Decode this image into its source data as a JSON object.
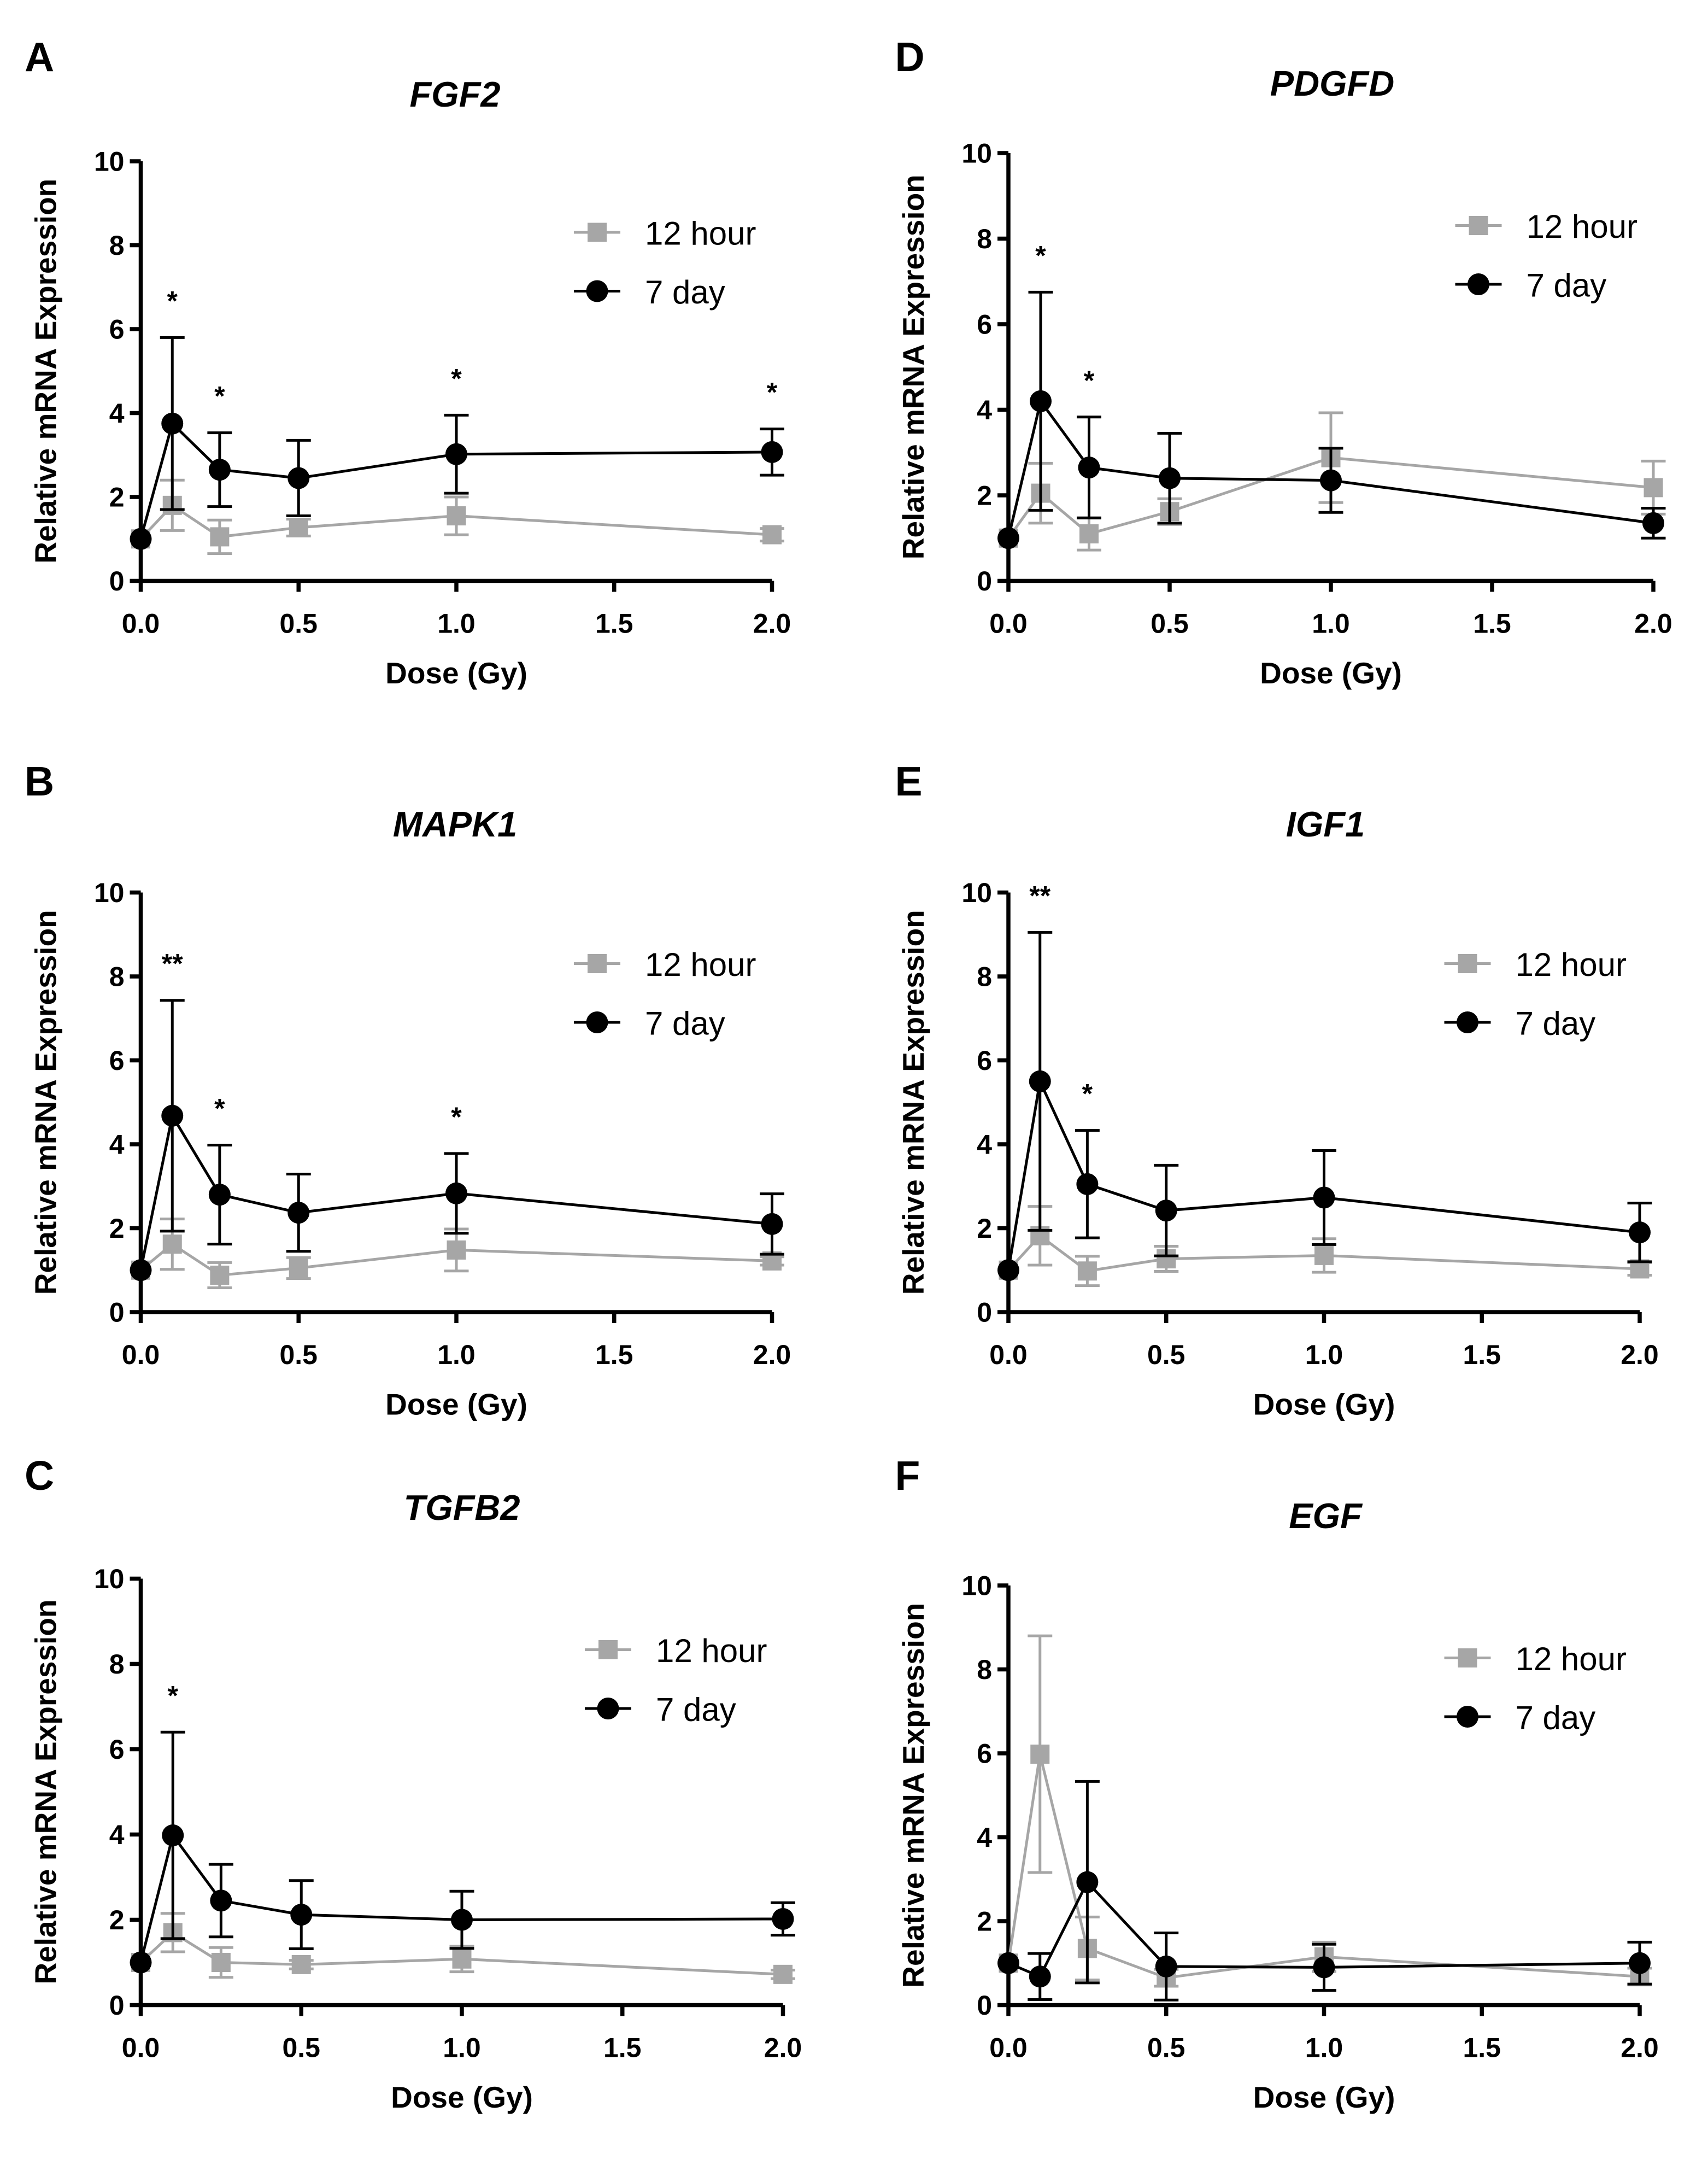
{
  "chart_data": [
    {
      "panel": "A",
      "type": "line",
      "title": "FGF2",
      "xlabel": "Dose (Gy)",
      "ylabel": "Relative mRNA Expression",
      "xlim": [
        0,
        2
      ],
      "ylim": [
        0,
        10
      ],
      "xticks": [
        "0.0",
        "0.5",
        "1.0",
        "1.5",
        "2.0"
      ],
      "yticks": [
        "0",
        "2",
        "4",
        "6",
        "8",
        "10"
      ],
      "x": [
        0,
        0.1,
        0.25,
        0.5,
        1.0,
        2.0
      ],
      "legend": "top-right",
      "series": [
        {
          "name": "12 hour",
          "color": "#a6a6a6",
          "marker": "square",
          "values": [
            1,
            1.8,
            1.05,
            1.27,
            1.55,
            1.1
          ],
          "error": [
            0,
            0.6,
            0.4,
            0.2,
            0.45,
            0.15
          ]
        },
        {
          "name": "7 day",
          "color": "#000000",
          "marker": "circle",
          "values": [
            1,
            3.75,
            2.65,
            2.45,
            3.02,
            3.07
          ],
          "error": [
            0,
            2.05,
            0.88,
            0.9,
            0.93,
            0.55
          ]
        }
      ],
      "annotations": [
        {
          "x": 0.1,
          "text": "*"
        },
        {
          "x": 0.25,
          "text": "*"
        },
        {
          "x": 1.0,
          "text": "*"
        },
        {
          "x": 2.0,
          "text": "*"
        }
      ]
    },
    {
      "panel": "B",
      "type": "line",
      "title": "MAPK1",
      "xlabel": "Dose (Gy)",
      "ylabel": "Relative mRNA Expression",
      "xlim": [
        0,
        2
      ],
      "ylim": [
        0,
        10
      ],
      "xticks": [
        "0.0",
        "0.5",
        "1.0",
        "1.5",
        "2.0"
      ],
      "yticks": [
        "0",
        "2",
        "4",
        "6",
        "8",
        "10"
      ],
      "x": [
        0,
        0.1,
        0.25,
        0.5,
        1.0,
        2.0
      ],
      "legend": "top-right",
      "series": [
        {
          "name": "12 hour",
          "color": "#a6a6a6",
          "marker": "square",
          "values": [
            1,
            1.62,
            0.88,
            1.05,
            1.48,
            1.22
          ],
          "error": [
            0,
            0.6,
            0.3,
            0.25,
            0.5,
            0.1
          ]
        },
        {
          "name": "7 day",
          "color": "#000000",
          "marker": "circle",
          "values": [
            1,
            4.68,
            2.8,
            2.37,
            2.83,
            2.1
          ],
          "error": [
            0,
            2.75,
            1.18,
            0.92,
            0.95,
            0.72
          ]
        }
      ],
      "annotations": [
        {
          "x": 0.1,
          "text": "**"
        },
        {
          "x": 0.25,
          "text": "*"
        },
        {
          "x": 1.0,
          "text": "*"
        }
      ]
    },
    {
      "panel": "C",
      "type": "line",
      "title": "TGFB2",
      "xlabel": "Dose (Gy)",
      "ylabel": "Relative mRNA Expression",
      "xlim": [
        0,
        2
      ],
      "ylim": [
        0,
        10
      ],
      "xticks": [
        "0.0",
        "0.5",
        "1.0",
        "1.5",
        "2.0"
      ],
      "yticks": [
        "0",
        "2",
        "4",
        "6",
        "8",
        "10"
      ],
      "x": [
        0,
        0.1,
        0.25,
        0.5,
        1.0,
        2.0
      ],
      "legend": "top-right",
      "series": [
        {
          "name": "12 hour",
          "color": "#a6a6a6",
          "marker": "square",
          "values": [
            1,
            1.7,
            1.0,
            0.95,
            1.08,
            0.72
          ],
          "error": [
            0,
            0.45,
            0.35,
            0.1,
            0.3,
            0.1
          ]
        },
        {
          "name": "7 day",
          "color": "#000000",
          "marker": "circle",
          "values": [
            1,
            3.98,
            2.45,
            2.12,
            2.0,
            2.02
          ],
          "error": [
            0,
            2.42,
            0.85,
            0.8,
            0.67,
            0.38
          ]
        }
      ],
      "annotations": [
        {
          "x": 0.1,
          "text": "*"
        }
      ]
    },
    {
      "panel": "D",
      "type": "line",
      "title": "PDGFD",
      "xlabel": "Dose (Gy)",
      "ylabel": "Relative mRNA Expression",
      "xlim": [
        0,
        2
      ],
      "ylim": [
        0,
        10
      ],
      "xticks": [
        "0.0",
        "0.5",
        "1.0",
        "1.5",
        "2.0"
      ],
      "yticks": [
        "0",
        "2",
        "4",
        "6",
        "8",
        "10"
      ],
      "x": [
        0,
        0.1,
        0.25,
        0.5,
        1.0,
        2.0
      ],
      "legend": "top-right",
      "series": [
        {
          "name": "12 hour",
          "color": "#a6a6a6",
          "marker": "square",
          "values": [
            1,
            2.05,
            1.1,
            1.62,
            2.88,
            2.18
          ],
          "error": [
            0,
            0.7,
            0.38,
            0.3,
            1.05,
            0.62
          ]
        },
        {
          "name": "7 day",
          "color": "#000000",
          "marker": "circle",
          "values": [
            1,
            4.2,
            2.65,
            2.4,
            2.35,
            1.35
          ],
          "error": [
            0,
            2.55,
            1.18,
            1.05,
            0.75,
            0.35
          ]
        }
      ],
      "annotations": [
        {
          "x": 0.1,
          "text": "*"
        },
        {
          "x": 0.25,
          "text": "*"
        }
      ]
    },
    {
      "panel": "E",
      "type": "line",
      "title": "IGF1",
      "xlabel": "Dose (Gy)",
      "ylabel": "Relative mRNA Expression",
      "xlim": [
        0,
        2
      ],
      "ylim": [
        0,
        10
      ],
      "xticks": [
        "0.0",
        "0.5",
        "1.0",
        "1.5",
        "2.0"
      ],
      "yticks": [
        "0",
        "2",
        "4",
        "6",
        "8",
        "10"
      ],
      "x": [
        0,
        0.1,
        0.25,
        0.5,
        1.0,
        2.0
      ],
      "legend": "top-right",
      "series": [
        {
          "name": "12 hour",
          "color": "#a6a6a6",
          "marker": "square",
          "values": [
            1,
            1.82,
            0.98,
            1.27,
            1.35,
            1.03
          ],
          "error": [
            0,
            0.7,
            0.35,
            0.3,
            0.4,
            0.15
          ]
        },
        {
          "name": "7 day",
          "color": "#000000",
          "marker": "circle",
          "values": [
            1,
            5.5,
            3.05,
            2.42,
            2.73,
            1.9
          ],
          "error": [
            0,
            3.55,
            1.28,
            1.08,
            1.12,
            0.7
          ]
        }
      ],
      "annotations": [
        {
          "x": 0.1,
          "text": "**"
        },
        {
          "x": 0.25,
          "text": "*"
        }
      ]
    },
    {
      "panel": "F",
      "type": "line",
      "title": "EGF",
      "xlabel": "Dose (Gy)",
      "ylabel": "Relative mRNA Expression",
      "xlim": [
        0,
        2
      ],
      "ylim": [
        0,
        10
      ],
      "xticks": [
        "0.0",
        "0.5",
        "1.0",
        "1.5",
        "2.0"
      ],
      "yticks": [
        "0",
        "2",
        "4",
        "6",
        "8",
        "10"
      ],
      "x": [
        0,
        0.1,
        0.25,
        0.5,
        1.0,
        2.0
      ],
      "legend": "top-right",
      "series": [
        {
          "name": "12 hour",
          "color": "#a6a6a6",
          "marker": "square",
          "values": [
            1,
            5.98,
            1.35,
            0.65,
            1.15,
            0.68
          ],
          "error": [
            0,
            2.82,
            0.75,
            0.2,
            0.35,
            0.2
          ]
        },
        {
          "name": "7 day",
          "color": "#000000",
          "marker": "circle",
          "values": [
            1,
            0.68,
            2.93,
            0.92,
            0.9,
            1.0
          ],
          "error": [
            0,
            0.55,
            2.4,
            0.8,
            0.55,
            0.5
          ]
        }
      ],
      "annotations": []
    }
  ]
}
